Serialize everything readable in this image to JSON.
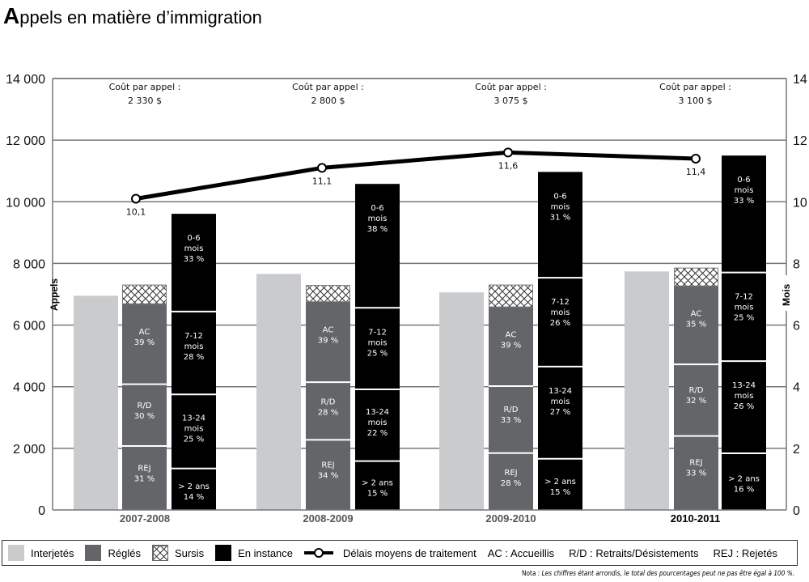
{
  "title": {
    "first_letter": "A",
    "rest": "ppels en matière d’immigration"
  },
  "chart_data": {
    "type": "bar",
    "subtype": "grouped-stacked-bar-with-line",
    "title": "Appels en matière d’immigration",
    "categories": [
      "2007-2008",
      "2008-2009",
      "2009-2010",
      "2010-2011"
    ],
    "highlighted_category": "2010-2011",
    "ylabel": "Appels",
    "y2label": "Mois",
    "ylim": [
      0,
      14000
    ],
    "y2lim": [
      0,
      14
    ],
    "yticks": [
      "0",
      "2 000",
      "4 000",
      "6 000",
      "8 000",
      "10 000",
      "12 000",
      "14 000"
    ],
    "yticks_values": [
      0,
      2000,
      4000,
      6000,
      8000,
      10000,
      12000,
      14000
    ],
    "y2ticks": [
      "0",
      "2",
      "4",
      "6",
      "8",
      "10",
      "12",
      "14"
    ],
    "grid": true,
    "cost_label": "Coût par appel :",
    "costs": [
      "2 330 $",
      "2 800 $",
      "3 075 $",
      "3 100 $"
    ],
    "series": [
      {
        "name": "Interjetés",
        "values": [
          6950,
          7660,
          7060,
          7740
        ],
        "color": "#cacbcd"
      },
      {
        "name": "Réglés",
        "values": [
          6690,
          6690,
          6590,
          7270
        ],
        "color": "#646569",
        "breakdown": [
          {
            "label": "REJ",
            "pct": [
              "31 %",
              "34 %",
              "28 %",
              "33 %"
            ],
            "share": [
              31,
              34,
              28,
              33
            ]
          },
          {
            "label": "R/D",
            "pct": [
              "30 %",
              "28 %",
              "33 %",
              "32 %"
            ],
            "share": [
              30,
              28,
              33,
              32
            ]
          },
          {
            "label": "AC",
            "pct": [
              "39 %",
              "39 %",
              "39 %",
              "35 %"
            ],
            "share": [
              39,
              39,
              39,
              35
            ]
          }
        ]
      },
      {
        "name": "Sursis",
        "values": [
          610,
          530,
          710,
          580
        ],
        "pattern": "crosshatch"
      },
      {
        "name": "En instance",
        "values": [
          9610,
          10580,
          11080,
          11500
        ],
        "color": "#000000",
        "breakdown": [
          {
            "label": "> 2 ans",
            "pct": [
              "14 %",
              "15 %",
              "15 %",
              "16 %"
            ],
            "share": [
              14,
              15,
              15,
              16
            ]
          },
          {
            "label": "13-24 mois",
            "pct": [
              "25 %",
              "22 %",
              "27 %",
              "26 %"
            ],
            "share": [
              25,
              22,
              27,
              26
            ]
          },
          {
            "label": "7-12 mois",
            "pct": [
              "28 %",
              "25 %",
              "26 %",
              "25 %"
            ],
            "share": [
              28,
              25,
              26,
              25
            ]
          },
          {
            "label": "0-6 mois",
            "pct": [
              "33 %",
              "38 %",
              "31 %",
              "33 %"
            ],
            "share": [
              33,
              38,
              31,
              33
            ]
          }
        ]
      },
      {
        "name": "Délais moyens de traitement",
        "type": "line",
        "axis": "y2",
        "values": [
          10.1,
          11.1,
          11.6,
          11.4
        ],
        "labels": [
          "10,1",
          "11,1",
          "11,6",
          "11,4"
        ]
      }
    ],
    "legend_position": "bottom"
  },
  "legend": {
    "items": [
      {
        "label": "Interjetés",
        "swatch": "light"
      },
      {
        "label": "Réglés",
        "swatch": "mid"
      },
      {
        "label": "Sursis",
        "swatch": "hatch"
      },
      {
        "label": "En instance",
        "swatch": "dark"
      },
      {
        "label": "Délais moyens de traitement",
        "swatch": "line"
      }
    ],
    "abbreviations": [
      "AC : Accueillis",
      "R/D : Retraits/Désistements",
      "REJ : Rejetés"
    ]
  },
  "note": {
    "prefix": "Nota :",
    "text": " Les chiffres étant arrondis, le total des pourcentages peut ne pas être égal à 100 %."
  }
}
